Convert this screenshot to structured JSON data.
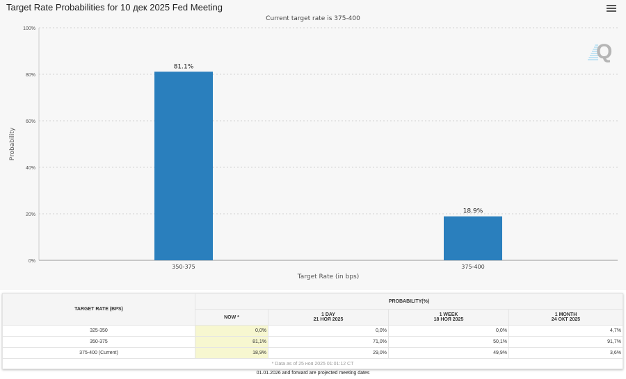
{
  "chart_data": {
    "type": "bar",
    "title": "Target Rate Probabilities for 10 дек 2025 Fed Meeting",
    "subtitle": "Current target rate is 375-400",
    "categories": [
      "350-375",
      "375-400"
    ],
    "values": [
      81.1,
      18.9
    ],
    "data_labels": [
      "81.1%",
      "18.9%"
    ],
    "xlabel": "Target Rate (in bps)",
    "ylabel": "Probability",
    "ylim": [
      0,
      100
    ],
    "yticks": [
      "0%",
      "20%",
      "40%",
      "60%",
      "80%",
      "100%"
    ],
    "grid": true,
    "bar_color": "#2a7fbd"
  },
  "table": {
    "col_header": "TARGET RATE (BPS)",
    "group_header": "PROBABILITY(%)",
    "sub_headers": [
      {
        "l1": "NOW *",
        "l2": ""
      },
      {
        "l1": "1 DAY",
        "l2": "21 НОЯ 2025"
      },
      {
        "l1": "1 WEEK",
        "l2": "18 НОЯ 2025"
      },
      {
        "l1": "1 MONTH",
        "l2": "24 ОКТ 2025"
      }
    ],
    "rows": [
      {
        "rate": "325-350",
        "now": "0,0%",
        "day": "0,0%",
        "week": "0,0%",
        "month": "4,7%"
      },
      {
        "rate": "350-375",
        "now": "81,1%",
        "day": "71,0%",
        "week": "50,1%",
        "month": "91,7%"
      },
      {
        "rate": "375-400 (Current)",
        "now": "18,9%",
        "day": "29,0%",
        "week": "49,9%",
        "month": "3,6%"
      }
    ],
    "footnote": "* Data as of 25 ноя 2025 01:01:12 CT"
  },
  "note": "01.01.2026 and forward are projected meeting dates",
  "icons": {
    "menu": "hamburger-menu-icon",
    "logo": "quikstrike-q-logo"
  }
}
